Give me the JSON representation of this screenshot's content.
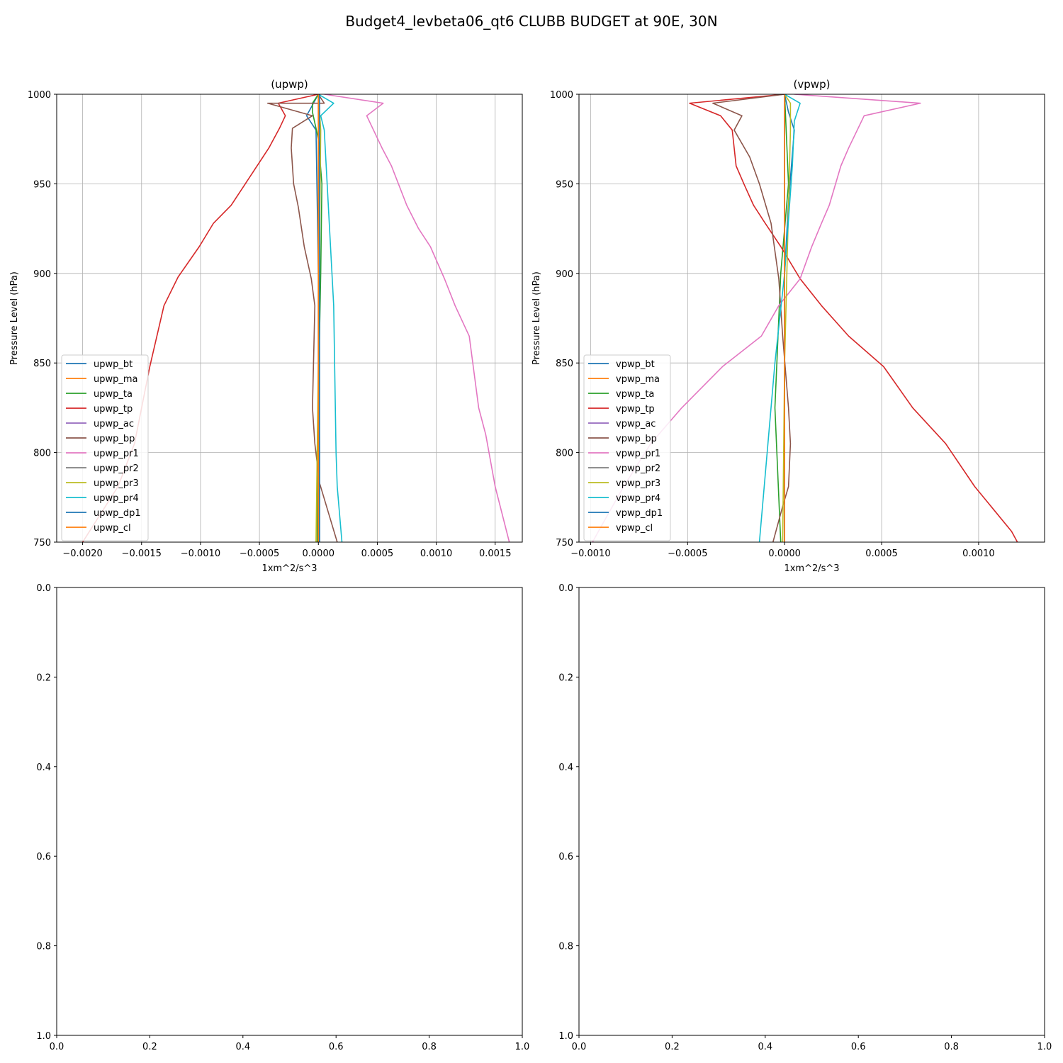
{
  "figure": {
    "title": "Budget4_levbeta06_qt6 CLUBB BUDGET at 90E, 30N"
  },
  "series_colors": [
    "#1f77b4",
    "#ff7f0e",
    "#2ca02c",
    "#d62728",
    "#9467bd",
    "#8c564b",
    "#e377c2",
    "#7f7f7f",
    "#bcbd22",
    "#17becf",
    "#1f77b4",
    "#ff7f0e"
  ],
  "chart_data": [
    {
      "type": "line",
      "title": "(upwp)",
      "xlabel": "1xm^2/s^3",
      "ylabel": "Pressure Level (hPa)",
      "xlim": [
        -0.00222,
        0.00173
      ],
      "ylim": [
        1000,
        750
      ],
      "xticks": [
        -0.002,
        -0.0015,
        -0.001,
        -0.0005,
        0.0,
        0.0005,
        0.001,
        0.0015
      ],
      "xtick_labels": [
        "−0.0020",
        "−0.0015",
        "−0.0010",
        "−0.0005",
        "0.0000",
        "0.0005",
        "0.0010",
        "0.0015"
      ],
      "yticks": [
        750,
        800,
        850,
        900,
        950,
        1000
      ],
      "ytick_labels": [
        "750",
        "800",
        "850",
        "900",
        "950",
        "1000"
      ],
      "grid": true,
      "legend": "lower-left",
      "series": [
        {
          "name": "upwp_bt",
          "points": [
            [
              1e-05,
              750
            ],
            [
              1e-05,
              800
            ],
            [
              0.0,
              900
            ],
            [
              -2e-05,
              980
            ],
            [
              -0.0001,
              988
            ],
            [
              0.0,
              1000
            ]
          ]
        },
        {
          "name": "upwp_ma",
          "points": [
            [
              0.0,
              750
            ],
            [
              0.0,
              1000
            ]
          ]
        },
        {
          "name": "upwp_ta",
          "points": [
            [
              -1e-05,
              750
            ],
            [
              -1e-05,
              800
            ],
            [
              2e-05,
              900
            ],
            [
              3e-05,
              950
            ],
            [
              0.0,
              975
            ],
            [
              -5e-05,
              990
            ],
            [
              -5e-05,
              995
            ],
            [
              0.0,
              1000
            ]
          ]
        },
        {
          "name": "upwp_tp",
          "points": [
            [
              -0.002,
              750
            ],
            [
              -0.0017,
              781
            ],
            [
              -0.00156,
              805
            ],
            [
              -0.00143,
              848
            ],
            [
              -0.00137,
              865
            ],
            [
              -0.00131,
              882
            ],
            [
              -0.00119,
              898
            ],
            [
              -0.00101,
              915
            ],
            [
              -0.00089,
              928
            ],
            [
              -0.00074,
              938
            ],
            [
              -0.00062,
              950
            ],
            [
              -0.00042,
              970
            ],
            [
              -0.00033,
              981
            ],
            [
              -0.00028,
              988
            ],
            [
              -0.00034,
              995
            ],
            [
              0.0,
              1000
            ]
          ]
        },
        {
          "name": "upwp_ac",
          "points": [
            [
              0.0,
              750
            ],
            [
              0.0,
              1000
            ]
          ]
        },
        {
          "name": "upwp_bp",
          "points": [
            [
              0.00016,
              750
            ],
            [
              1e-05,
              783
            ],
            [
              -3e-05,
              805
            ],
            [
              -5e-05,
              825
            ],
            [
              -3e-05,
              882
            ],
            [
              -6e-05,
              897
            ],
            [
              -0.00012,
              915
            ],
            [
              -0.00017,
              937
            ],
            [
              -0.00021,
              950
            ],
            [
              -0.00023,
              970
            ],
            [
              -0.00022,
              981
            ],
            [
              -5e-05,
              988
            ],
            [
              -0.00043,
              995
            ],
            [
              5e-05,
              995
            ],
            [
              0.0,
              1000
            ]
          ]
        },
        {
          "name": "upwp_pr1",
          "points": [
            [
              0.00162,
              750
            ],
            [
              0.0015,
              781
            ],
            [
              0.00142,
              810
            ],
            [
              0.00136,
              825
            ],
            [
              0.00128,
              865
            ],
            [
              0.00116,
              882
            ],
            [
              0.00107,
              897
            ],
            [
              0.00095,
              915
            ],
            [
              0.00085,
              925
            ],
            [
              0.00075,
              938
            ],
            [
              0.00062,
              960
            ],
            [
              0.00054,
              970
            ],
            [
              0.00041,
              988
            ],
            [
              0.00055,
              995
            ],
            [
              5e-05,
              1000
            ]
          ]
        },
        {
          "name": "upwp_pr2",
          "points": [
            [
              0.0,
              750
            ],
            [
              0.0,
              1000
            ]
          ]
        },
        {
          "name": "upwp_pr3",
          "points": [
            [
              -2e-05,
              750
            ],
            [
              0.0,
              850
            ],
            [
              2e-05,
              980
            ],
            [
              0.0,
              1000
            ]
          ]
        },
        {
          "name": "upwp_pr4",
          "points": [
            [
              0.0002,
              750
            ],
            [
              0.00016,
              781
            ],
            [
              0.00015,
              800
            ],
            [
              0.00013,
              882
            ],
            [
              5e-05,
              980
            ],
            [
              2e-05,
              988
            ],
            [
              0.00013,
              995
            ],
            [
              0.0,
              1000
            ]
          ]
        },
        {
          "name": "upwp_dp1",
          "points": [
            [
              1e-05,
              750
            ],
            [
              1e-05,
              1000
            ]
          ]
        },
        {
          "name": "upwp_cl",
          "points": [
            [
              0.0,
              750
            ],
            [
              0.0,
              1000
            ]
          ]
        }
      ]
    },
    {
      "type": "line",
      "title": "(vpwp)",
      "xlabel": "1xm^2/s^3",
      "ylabel": "Pressure Level (hPa)",
      "xlim": [
        -0.00106,
        0.00134
      ],
      "ylim": [
        1000,
        750
      ],
      "xticks": [
        -0.001,
        -0.0005,
        0.0,
        0.0005,
        0.001
      ],
      "xtick_labels": [
        "−0.0010",
        "−0.0005",
        "0.0000",
        "0.0005",
        "0.0010"
      ],
      "yticks": [
        750,
        800,
        850,
        900,
        950,
        1000
      ],
      "ytick_labels": [
        "750",
        "800",
        "850",
        "900",
        "950",
        "1000"
      ],
      "grid": true,
      "legend": "lower-left",
      "series": [
        {
          "name": "vpwp_bt",
          "points": [
            [
              0.0,
              750
            ],
            [
              0.0,
              900
            ],
            [
              2e-05,
              940
            ],
            [
              5e-05,
              980
            ],
            [
              2e-05,
              990
            ],
            [
              0.0,
              1000
            ]
          ]
        },
        {
          "name": "vpwp_ma",
          "points": [
            [
              0.0,
              750
            ],
            [
              0.0,
              1000
            ]
          ]
        },
        {
          "name": "vpwp_ta",
          "points": [
            [
              -2e-05,
              750
            ],
            [
              -5e-05,
              825
            ],
            [
              -2e-05,
              900
            ],
            [
              2e-05,
              950
            ],
            [
              0.0,
              1000
            ]
          ]
        },
        {
          "name": "vpwp_tp",
          "points": [
            [
              0.0012,
              750
            ],
            [
              0.00117,
              756
            ],
            [
              0.00098,
              781
            ],
            [
              0.00083,
              805
            ],
            [
              0.00066,
              825
            ],
            [
              0.00051,
              848
            ],
            [
              0.00033,
              865
            ],
            [
              0.00019,
              882
            ],
            [
              8e-05,
              897
            ],
            [
              -2e-05,
              915
            ],
            [
              -0.0001,
              928
            ],
            [
              -0.00016,
              938
            ],
            [
              -0.00021,
              950
            ],
            [
              -0.00025,
              960
            ],
            [
              -0.00027,
              980
            ],
            [
              -0.00033,
              988
            ],
            [
              -0.00049,
              995
            ],
            [
              0.0,
              1000
            ]
          ]
        },
        {
          "name": "vpwp_ac",
          "points": [
            [
              0.0,
              750
            ],
            [
              0.0,
              1000
            ]
          ]
        },
        {
          "name": "vpwp_bp",
          "points": [
            [
              -6e-05,
              750
            ],
            [
              -1e-05,
              770
            ],
            [
              2e-05,
              781
            ],
            [
              3e-05,
              805
            ],
            [
              2e-05,
              825
            ],
            [
              -1e-05,
              865
            ],
            [
              -3e-05,
              897
            ],
            [
              -7e-05,
              928
            ],
            [
              -0.00013,
              950
            ],
            [
              -0.00018,
              965
            ],
            [
              -0.00026,
              980
            ],
            [
              -0.00022,
              988
            ],
            [
              -0.00037,
              995
            ],
            [
              0.0,
              1000
            ]
          ]
        },
        {
          "name": "vpwp_pr1",
          "points": [
            [
              -0.00099,
              750
            ],
            [
              -0.00096,
              756
            ],
            [
              -0.00083,
              781
            ],
            [
              -0.00069,
              805
            ],
            [
              -0.00053,
              825
            ],
            [
              -0.00032,
              848
            ],
            [
              -0.00012,
              865
            ],
            [
              -3e-05,
              882
            ],
            [
              8e-05,
              897
            ],
            [
              0.00014,
              915
            ],
            [
              0.00019,
              928
            ],
            [
              0.00023,
              938
            ],
            [
              0.00029,
              960
            ],
            [
              0.00033,
              970
            ],
            [
              0.00041,
              988
            ],
            [
              0.0007,
              995
            ],
            [
              5e-05,
              1000
            ]
          ]
        },
        {
          "name": "vpwp_pr2",
          "points": [
            [
              0.0,
              750
            ],
            [
              0.0,
              1000
            ]
          ]
        },
        {
          "name": "vpwp_pr3",
          "points": [
            [
              -1e-05,
              750
            ],
            [
              0.0,
              850
            ],
            [
              3e-05,
              980
            ],
            [
              3e-05,
              995
            ],
            [
              0.0,
              1000
            ]
          ]
        },
        {
          "name": "vpwp_pr4",
          "points": [
            [
              -0.00013,
              750
            ],
            [
              -9e-05,
              800
            ],
            [
              -5e-05,
              850
            ],
            [
              0.0,
              900
            ],
            [
              4e-05,
              960
            ],
            [
              5e-05,
              985
            ],
            [
              8e-05,
              995
            ],
            [
              0.0,
              1000
            ]
          ]
        },
        {
          "name": "vpwp_dp1",
          "points": [
            [
              0.0,
              750
            ],
            [
              0.0,
              1000
            ]
          ]
        },
        {
          "name": "vpwp_cl",
          "points": [
            [
              0.0,
              750
            ],
            [
              0.0,
              1000
            ]
          ]
        }
      ]
    },
    {
      "type": "line",
      "title": "",
      "xlabel": "",
      "ylabel": "",
      "xlim": [
        0.0,
        1.0
      ],
      "ylim": [
        0.0,
        1.0
      ],
      "xticks": [
        0.0,
        0.2,
        0.4,
        0.6,
        0.8,
        1.0
      ],
      "xtick_labels": [
        "0.0",
        "0.2",
        "0.4",
        "0.6",
        "0.8",
        "1.0"
      ],
      "yticks": [
        0.0,
        0.2,
        0.4,
        0.6,
        0.8,
        1.0
      ],
      "ytick_labels": [
        "0.0",
        "0.2",
        "0.4",
        "0.6",
        "0.8",
        "1.0"
      ],
      "grid": false,
      "legend": "none",
      "series": []
    },
    {
      "type": "line",
      "title": "",
      "xlabel": "",
      "ylabel": "",
      "xlim": [
        0.0,
        1.0
      ],
      "ylim": [
        0.0,
        1.0
      ],
      "xticks": [
        0.0,
        0.2,
        0.4,
        0.6,
        0.8,
        1.0
      ],
      "xtick_labels": [
        "0.0",
        "0.2",
        "0.4",
        "0.6",
        "0.8",
        "1.0"
      ],
      "yticks": [
        0.0,
        0.2,
        0.4,
        0.6,
        0.8,
        1.0
      ],
      "ytick_labels": [
        "0.0",
        "0.2",
        "0.4",
        "0.6",
        "0.8",
        "1.0"
      ],
      "grid": false,
      "legend": "none",
      "series": []
    }
  ]
}
